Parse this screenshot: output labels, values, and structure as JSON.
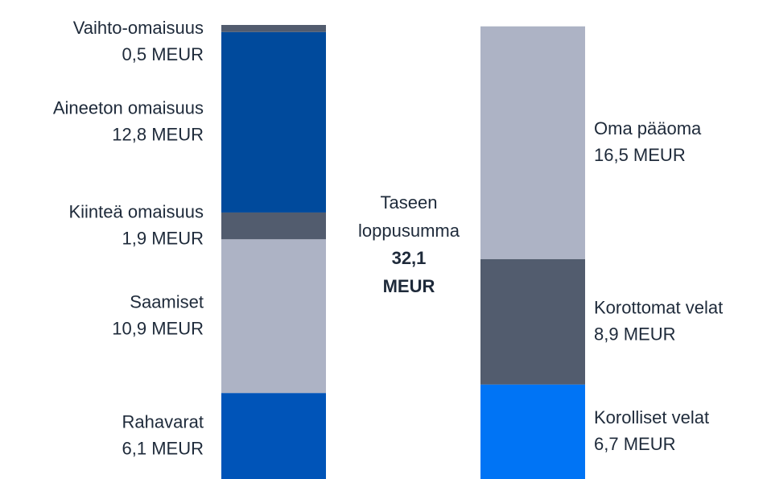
{
  "chart_data": {
    "type": "bar",
    "stacked": true,
    "categories": [
      null,
      null
    ],
    "ylim": [
      0,
      32.2
    ],
    "center_title": "Taseen loppusumma",
    "center_total": "32,1 MEUR",
    "series": [
      {
        "name": "Rahavarat",
        "color": "#0054b8",
        "values": [
          6.1,
          null
        ],
        "value_labels": [
          "6,1 MEUR",
          null
        ]
      },
      {
        "name": "Saamiset",
        "color": "#adb3c5",
        "values": [
          10.9,
          null
        ],
        "value_labels": [
          "10,9 MEUR",
          null
        ]
      },
      {
        "name": "Kiinteä omaisuus",
        "color": "#525c6e",
        "values": [
          1.9,
          null
        ],
        "value_labels": [
          "1,9 MEUR",
          null
        ]
      },
      {
        "name": "Aineeton omaisuus",
        "color": "#004a9c",
        "values": [
          12.8,
          null
        ],
        "value_labels": [
          "12,8 MEUR",
          null
        ]
      },
      {
        "name": "Vaihto-omaisuus",
        "color": "#525c6e",
        "values": [
          0.5,
          null
        ],
        "value_labels": [
          "0,5 MEUR",
          null
        ]
      },
      {
        "name": "Korolliset velat",
        "color": "#0074f5",
        "values": [
          null,
          6.7
        ],
        "value_labels": [
          null,
          "6,7 MEUR"
        ]
      },
      {
        "name": "Korottomat velat",
        "color": "#525c6e",
        "values": [
          null,
          8.9
        ],
        "value_labels": [
          null,
          "8,9 MEUR"
        ]
      },
      {
        "name": "Oma pääoma",
        "color": "#adb3c5",
        "values": [
          null,
          16.5
        ],
        "value_labels": [
          null,
          "16,5 MEUR"
        ]
      }
    ]
  }
}
